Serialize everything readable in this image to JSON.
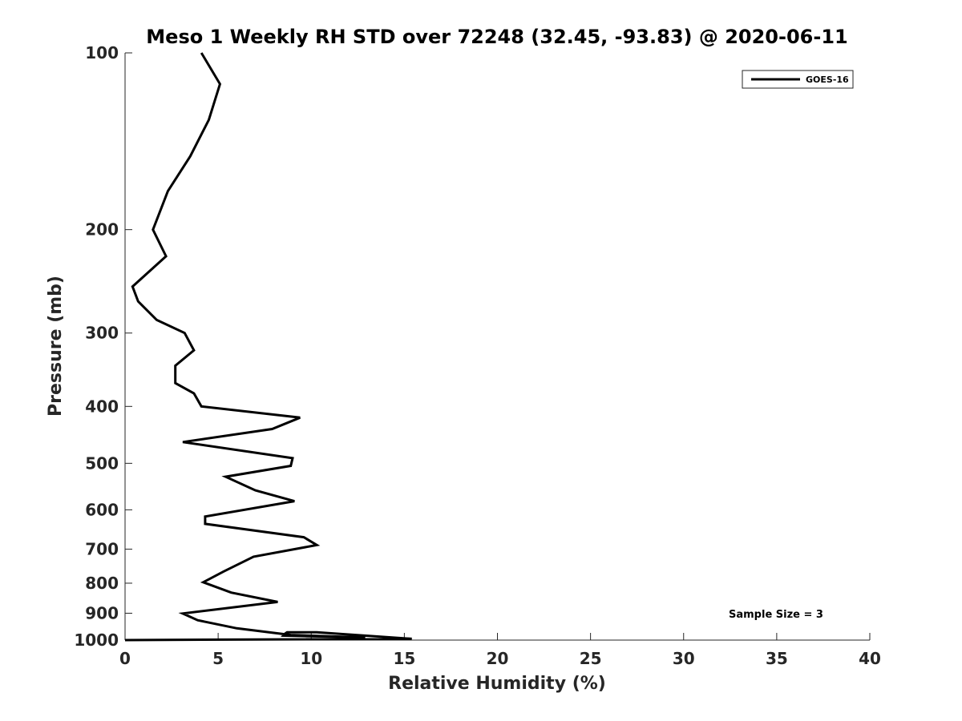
{
  "chart_data": {
    "type": "line",
    "title": "Meso 1 Weekly RH STD over 72248 (32.45, -93.83) @ 2020-06-11",
    "xlabel": "Relative Humidity (%)",
    "ylabel": "Pressure (mb)",
    "xlim": [
      0,
      40
    ],
    "ylim": [
      100,
      1000
    ],
    "y_scale": "log",
    "y_reversed": true,
    "grid": false,
    "legend_position": "top-right",
    "x_ticks": [
      "0",
      "5",
      "10",
      "15",
      "20",
      "25",
      "30",
      "35",
      "40"
    ],
    "y_ticks": [
      "100",
      "200",
      "300",
      "400",
      "500",
      "600",
      "700",
      "800",
      "900",
      "1000"
    ],
    "annotation": "Sample Size = 3",
    "series": [
      {
        "name": "GOES-16",
        "color": "#000000",
        "x": [
          4.1,
          5.1,
          4.5,
          3.5,
          2.3,
          1.5,
          2.2,
          0.4,
          0.7,
          1.7,
          3.2,
          3.7,
          2.7,
          2.7,
          3.7,
          4.1,
          9.4,
          7.9,
          3.1,
          9.0,
          8.9,
          5.4,
          7.0,
          9.1,
          4.3,
          4.3,
          9.6,
          10.3,
          6.9,
          5.3,
          4.2,
          5.7,
          8.2,
          3.1,
          3.9,
          6.0,
          8.9,
          12.9,
          8.5,
          8.6,
          8.7,
          10.3,
          15.4,
          0.0
        ],
        "y": [
          100,
          113,
          130,
          150,
          172,
          200,
          222,
          250,
          265,
          285,
          300,
          321,
          341,
          365,
          380,
          400,
          418,
          437,
          460,
          490,
          505,
          527,
          556,
          580,
          616,
          634,
          668,
          689,
          721,
          764,
          797,
          830,
          861,
          901,
          925,
          955,
          980,
          990,
          983,
          975,
          970,
          970,
          995,
          1000
        ]
      }
    ]
  }
}
